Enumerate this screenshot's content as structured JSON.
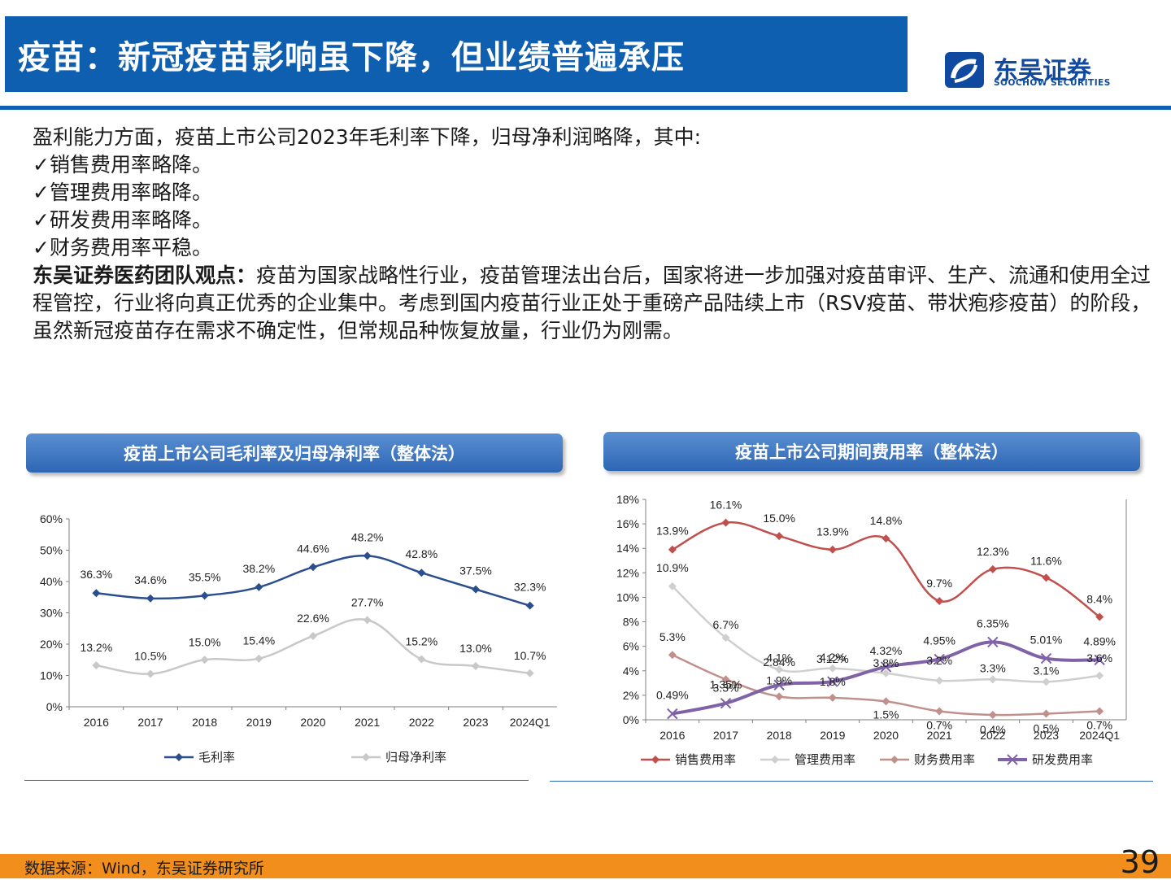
{
  "header": {
    "title": "疫苗：新冠疫苗影响虽下降，但业绩普遍承压",
    "logo_cn": "东吴证券",
    "logo_en": "SOOCHOW SECURITIES"
  },
  "body": {
    "intro": "盈利能力方面，疫苗上市公司2023年毛利率下降，归母净利润略降，其中:",
    "bullets": [
      "✓销售费用率略降。",
      "✓管理费用率略降。",
      "✓研发费用率略降。",
      "✓财务费用率平稳。"
    ],
    "view_label": "东吴证券医药团队观点：",
    "view_text": "疫苗为国家战略性行业，疫苗管理法出台后，国家将进一步加强对疫苗审评、生产、流通和使用全过程管控，行业将向真正优秀的企业集中。考虑到国内疫苗行业正处于重磅产品陆续上市（RSV疫苗、带状疱疹疫苗）的阶段，虽然新冠疫苗存在需求不确定性，但常规品种恢复放量，行业仍为刚需。"
  },
  "chart_data": [
    {
      "type": "line",
      "title": "疫苗上市公司毛利率及归母净利率（整体法）",
      "categories": [
        "2016",
        "2017",
        "2018",
        "2019",
        "2020",
        "2021",
        "2022",
        "2023",
        "2024Q1"
      ],
      "yticks": [
        "0%",
        "10%",
        "20%",
        "30%",
        "40%",
        "50%",
        "60%"
      ],
      "ylim": [
        0,
        60
      ],
      "series": [
        {
          "name": "毛利率",
          "color": "#2b4f8e",
          "marker": "diamond",
          "smooth": true,
          "values": [
            36.3,
            34.6,
            35.5,
            38.2,
            44.6,
            48.2,
            42.8,
            37.5,
            32.3
          ],
          "labels": [
            "36.3%",
            "34.6%",
            "35.5%",
            "38.2%",
            "44.6%",
            "48.2%",
            "42.8%",
            "37.5%",
            "32.3%"
          ]
        },
        {
          "name": "归母净利率",
          "color": "#c8c8c8",
          "marker": "diamond",
          "smooth": true,
          "values": [
            13.2,
            10.5,
            15.0,
            15.4,
            22.6,
            27.7,
            15.2,
            13.0,
            10.7
          ],
          "labels": [
            "13.2%",
            "10.5%",
            "15.0%",
            "15.4%",
            "22.6%",
            "27.7%",
            "15.2%",
            "13.0%",
            "10.7%"
          ]
        }
      ],
      "legend": "bottom"
    },
    {
      "type": "line",
      "title": "疫苗上市公司期间费用率（整体法）",
      "categories": [
        "2016",
        "2017",
        "2018",
        "2019",
        "2020",
        "2021",
        "2022",
        "2023",
        "2024Q1"
      ],
      "yticks": [
        "0%",
        "2%",
        "4%",
        "6%",
        "8%",
        "10%",
        "12%",
        "14%",
        "16%",
        "18%"
      ],
      "ylim": [
        0,
        18
      ],
      "series": [
        {
          "name": "销售费用率",
          "color": "#c0504d",
          "marker": "diamond",
          "smooth": true,
          "values": [
            13.9,
            16.1,
            15.0,
            13.9,
            14.8,
            9.7,
            12.3,
            11.6,
            8.4
          ],
          "labels": [
            "13.9%",
            "16.1%",
            "15.0%",
            "13.9%",
            "14.8%",
            "9.7%",
            "12.3%",
            "11.6%",
            "8.4%"
          ]
        },
        {
          "name": "管理费用率",
          "color": "#cfcfcf",
          "marker": "diamond",
          "smooth": true,
          "values": [
            10.9,
            6.7,
            4.1,
            4.2,
            3.8,
            3.2,
            3.3,
            3.1,
            3.6
          ],
          "labels": [
            "10.9%",
            "6.7%",
            "4.1%",
            "4.2%",
            "3.8%",
            "3.2%",
            "3.3%",
            "3.1%",
            "3.6%"
          ]
        },
        {
          "name": "财务费用率",
          "color": "#c0908c",
          "marker": "diamond",
          "smooth": true,
          "values": [
            5.3,
            3.3,
            1.9,
            1.8,
            1.5,
            0.7,
            0.4,
            0.5,
            0.7
          ],
          "labels": [
            "5.3%",
            "3.3%",
            "1.9%",
            "1.8%",
            "1.5%",
            "0.7%",
            "0.4%",
            "0.5%",
            "0.7%"
          ]
        },
        {
          "name": "研发费用率",
          "color": "#7f63a6",
          "marker": "x",
          "smooth": true,
          "thick": true,
          "values": [
            0.49,
            1.35,
            2.84,
            3.12,
            4.32,
            4.95,
            6.35,
            5.01,
            4.89
          ],
          "labels": [
            "0.49%",
            "1.35%",
            "2.84%",
            "3.12%",
            "4.32%",
            "4.95%",
            "6.35%",
            "5.01%",
            "4.89%"
          ]
        }
      ],
      "legend": "bottom"
    }
  ],
  "footer": {
    "source": "数据来源：Wind，东吴证券研究所",
    "page_number": "39"
  }
}
